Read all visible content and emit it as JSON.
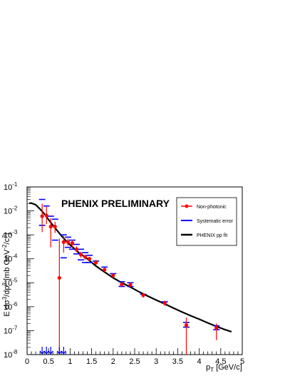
{
  "chart_data": {
    "type": "scatter",
    "title": "PHENIX PRELIMINARY",
    "xlabel_main": "p",
    "xlabel_sub": "T",
    "xlabel_unit": " [GeV/c]",
    "ylabel_parts": [
      {
        "t": "E d",
        "sup": false
      },
      {
        "t": "σ",
        "sup": false
      },
      {
        "t": "3",
        "sup": true
      },
      {
        "t": "/dp",
        "sup": false
      },
      {
        "t": "3",
        "sup": true
      },
      {
        "t": " [mb GeV",
        "sup": false
      },
      {
        "t": "-2",
        "sup": true
      },
      {
        "t": "/c",
        "sup": false
      },
      {
        "t": "3",
        "sup": true
      },
      {
        "t": "]",
        "sup": false
      }
    ],
    "xlim": [
      0,
      5
    ],
    "ylim_log10": [
      -8,
      -1
    ],
    "y_scale": "log",
    "x_ticks": [
      "0",
      "0.5",
      "1",
      "1.5",
      "2",
      "2.5",
      "3",
      "3.5",
      "4",
      "4.5",
      "5"
    ],
    "y_ticks": [
      {
        "base": "10",
        "exp": "-1"
      },
      {
        "base": "10",
        "exp": "-2"
      },
      {
        "base": "10",
        "exp": "-3"
      },
      {
        "base": "10",
        "exp": "-4"
      },
      {
        "base": "10",
        "exp": "-5"
      },
      {
        "base": "10",
        "exp": "-6"
      },
      {
        "base": "10",
        "exp": "-7"
      },
      {
        "base": "10",
        "exp": "-8"
      }
    ],
    "legend": {
      "position": "top-right",
      "entries": [
        {
          "label": "Non-photonic",
          "style": "marker",
          "color": "#ff0000"
        },
        {
          "label": "Systematic error",
          "style": "dash",
          "color": "#0000ff"
        },
        {
          "label": "PHENIX pp fit",
          "style": "line",
          "color": "#000000"
        }
      ]
    },
    "colors": {
      "data": "#ff0000",
      "systematic": "#0000ff",
      "fit": "#000000"
    },
    "series": [
      {
        "name": "Non-photonic",
        "points": [
          {
            "x": 0.35,
            "y": 0.006,
            "yhi": 0.02,
            "ylo": 0.0013
          },
          {
            "x": 0.45,
            "y": 0.0065,
            "yhi": 0.015,
            "ylo": 0.0028
          },
          {
            "x": 0.55,
            "y": 0.0022,
            "yhi": 0.005,
            "ylo": 0.0003
          },
          {
            "x": 0.65,
            "y": 0.0022,
            "yhi": 0.0035,
            "ylo": 0.0012
          },
          {
            "x": 0.75,
            "y": 1.6e-05,
            "yhi": 0.0007,
            "ylo": 1e-08
          },
          {
            "x": 0.85,
            "y": 0.0005,
            "yhi": 0.0009,
            "ylo": 0.00018
          },
          {
            "x": 0.95,
            "y": 0.0005,
            "yhi": 0.0007,
            "ylo": 0.00035
          },
          {
            "x": 1.05,
            "y": 0.00045,
            "yhi": 0.0006,
            "ylo": 0.0003
          },
          {
            "x": 1.15,
            "y": 0.00025,
            "yhi": 0.00033,
            "ylo": 0.00019
          },
          {
            "x": 1.25,
            "y": 0.00015,
            "yhi": 0.0002,
            "ylo": 0.00011
          },
          {
            "x": 1.35,
            "y": 0.00012,
            "yhi": 0.00015,
            "ylo": 9e-05
          },
          {
            "x": 1.45,
            "y": 0.0001,
            "yhi": 0.00012,
            "ylo": 8e-05
          },
          {
            "x": 1.6,
            "y": 7e-05,
            "yhi": 9e-05,
            "ylo": 5.5e-05
          },
          {
            "x": 1.8,
            "y": 3.5e-05,
            "yhi": 4.2e-05,
            "ylo": 2.8e-05
          },
          {
            "x": 2.0,
            "y": 2e-05,
            "yhi": 2.5e-05,
            "ylo": 1.6e-05
          },
          {
            "x": 2.2,
            "y": 8.5e-06,
            "yhi": 1.1e-05,
            "ylo": 6.5e-06
          },
          {
            "x": 2.4,
            "y": 8.2e-06,
            "yhi": 1e-05,
            "ylo": 6.5e-06
          },
          {
            "x": 2.7,
            "y": 3e-06,
            "yhi": 3.7e-06,
            "ylo": 2.4e-06
          },
          {
            "x": 3.2,
            "y": 1.4e-06,
            "yhi": 1.8e-06,
            "ylo": 1.1e-06
          },
          {
            "x": 3.7,
            "y": 1.7e-07,
            "yhi": 3.5e-07,
            "ylo": 1e-08
          },
          {
            "x": 4.4,
            "y": 1.3e-07,
            "yhi": 2e-07,
            "ylo": 4e-08
          }
        ]
      },
      {
        "name": "Systematic error",
        "points": [
          {
            "x": 0.35,
            "y": 0.03
          },
          {
            "x": 0.35,
            "y": 0.0025
          },
          {
            "x": 0.45,
            "y": 0.016
          },
          {
            "x": 0.55,
            "y": 0.006
          },
          {
            "x": 0.65,
            "y": 0.0045
          },
          {
            "x": 0.65,
            "y": 0.0006
          },
          {
            "x": 0.85,
            "y": 0.001
          },
          {
            "x": 0.85,
            "y": 0.00011
          },
          {
            "x": 0.95,
            "y": 0.0008
          },
          {
            "x": 0.95,
            "y": 0.0003
          },
          {
            "x": 1.05,
            "y": 0.0006
          },
          {
            "x": 1.05,
            "y": 0.00025
          },
          {
            "x": 1.15,
            "y": 0.0004
          },
          {
            "x": 1.15,
            "y": 0.00016
          },
          {
            "x": 1.25,
            "y": 0.00025
          },
          {
            "x": 1.25,
            "y": 9e-05
          },
          {
            "x": 1.35,
            "y": 0.00018
          },
          {
            "x": 1.35,
            "y": 7e-05
          },
          {
            "x": 1.45,
            "y": 0.00014
          },
          {
            "x": 1.45,
            "y": 7e-05
          },
          {
            "x": 1.6,
            "y": 8e-05
          },
          {
            "x": 1.8,
            "y": 4.5e-05
          },
          {
            "x": 2.0,
            "y": 2.4e-05
          },
          {
            "x": 2.2,
            "y": 1.1e-05
          },
          {
            "x": 2.2,
            "y": 7e-06
          },
          {
            "x": 2.4,
            "y": 1e-05
          },
          {
            "x": 2.4,
            "y": 7e-06
          },
          {
            "x": 2.7,
            "y": 3.3e-06
          },
          {
            "x": 3.2,
            "y": 1.6e-06
          },
          {
            "x": 3.7,
            "y": 2.2e-07
          },
          {
            "x": 3.7,
            "y": 1.4e-07
          },
          {
            "x": 4.4,
            "y": 1.6e-07
          },
          {
            "x": 4.4,
            "y": 1.1e-07
          }
        ]
      },
      {
        "name": "PHENIX pp fit",
        "points": [
          {
            "x": 0.05,
            "y": 0.021
          },
          {
            "x": 0.1,
            "y": 0.021
          },
          {
            "x": 0.2,
            "y": 0.018
          },
          {
            "x": 0.3,
            "y": 0.012
          },
          {
            "x": 0.4,
            "y": 0.0075
          },
          {
            "x": 0.5,
            "y": 0.0043
          },
          {
            "x": 0.6,
            "y": 0.0025
          },
          {
            "x": 0.7,
            "y": 0.0015
          },
          {
            "x": 0.8,
            "y": 0.0009
          },
          {
            "x": 0.9,
            "y": 0.00058
          },
          {
            "x": 1.0,
            "y": 0.00038
          },
          {
            "x": 1.2,
            "y": 0.00018
          },
          {
            "x": 1.4,
            "y": 0.0001
          },
          {
            "x": 1.6,
            "y": 5e-05
          },
          {
            "x": 1.8,
            "y": 2.8e-05
          },
          {
            "x": 2.0,
            "y": 1.6e-05
          },
          {
            "x": 2.2,
            "y": 1e-05
          },
          {
            "x": 2.4,
            "y": 6.6e-06
          },
          {
            "x": 2.6,
            "y": 4.2e-06
          },
          {
            "x": 2.8,
            "y": 2.8e-06
          },
          {
            "x": 3.0,
            "y": 1.9e-06
          },
          {
            "x": 3.2,
            "y": 1.3e-06
          },
          {
            "x": 3.4,
            "y": 8.8e-07
          },
          {
            "x": 3.6,
            "y": 6e-07
          },
          {
            "x": 3.8,
            "y": 4.2e-07
          },
          {
            "x": 4.0,
            "y": 3e-07
          },
          {
            "x": 4.2,
            "y": 2.1e-07
          },
          {
            "x": 4.4,
            "y": 1.5e-07
          },
          {
            "x": 4.6,
            "y": 1.1e-07
          },
          {
            "x": 4.75,
            "y": 9e-08
          }
        ]
      }
    ],
    "upper_limit_arrows_x": [
      0.35,
      0.45,
      0.55,
      0.75,
      0.85
    ]
  }
}
